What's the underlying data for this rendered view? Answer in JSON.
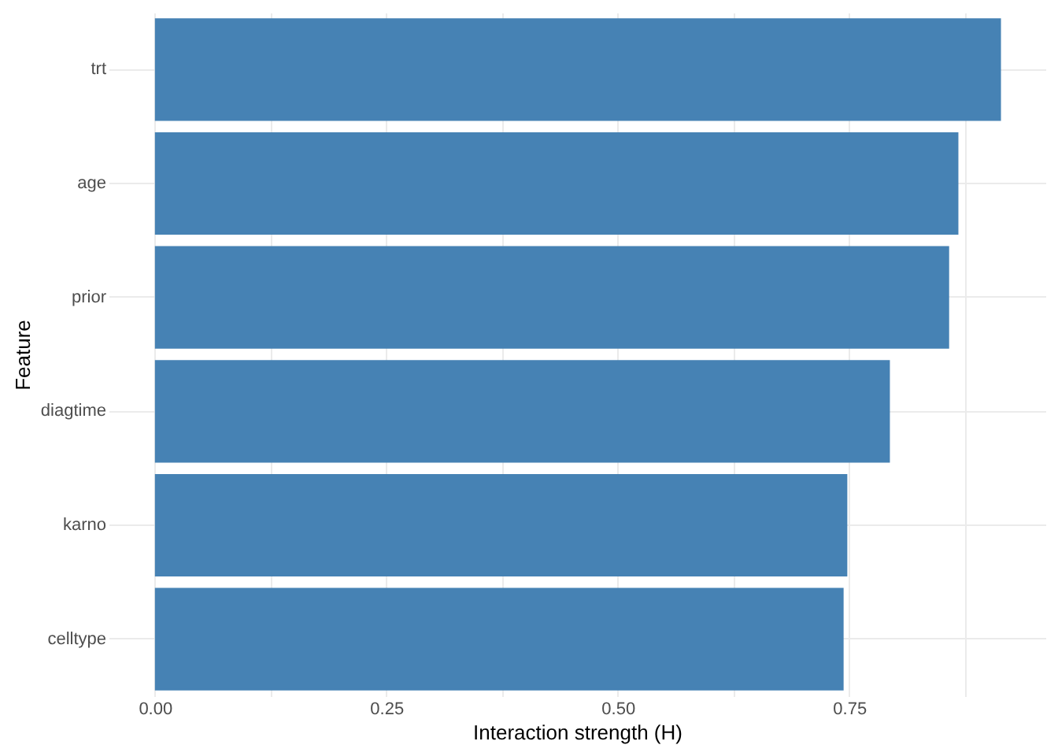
{
  "chart_data": {
    "type": "bar",
    "orientation": "horizontal",
    "categories": [
      "trt",
      "age",
      "prior",
      "diagtime",
      "karno",
      "celltype"
    ],
    "values": [
      0.914,
      0.868,
      0.858,
      0.794,
      0.748,
      0.744
    ],
    "color": "#4682b4",
    "xlabel": "Interaction strength (H)",
    "ylabel": "Feature",
    "xlim": [
      -0.05,
      0.962
    ],
    "xticks": [
      {
        "value": 0,
        "label": "0.00"
      },
      {
        "value": 0.125,
        "label": null
      },
      {
        "value": 0.25,
        "label": "0.25"
      },
      {
        "value": 0.375,
        "label": null
      },
      {
        "value": 0.5,
        "label": "0.50"
      },
      {
        "value": 0.625,
        "label": null
      },
      {
        "value": 0.75,
        "label": "0.75"
      },
      {
        "value": 0.875,
        "label": null
      }
    ],
    "grid": true
  }
}
